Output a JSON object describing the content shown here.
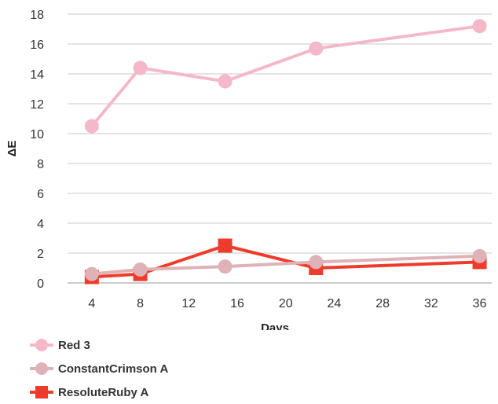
{
  "chart_data": {
    "type": "line",
    "title": "",
    "xlabel": "Days",
    "ylabel": "ΔE",
    "xlim": [
      2,
      37
    ],
    "ylim": [
      0,
      18
    ],
    "xticks": [
      4,
      8,
      12,
      16,
      20,
      24,
      28,
      32,
      36
    ],
    "yticks": [
      0,
      2,
      4,
      6,
      8,
      10,
      12,
      14,
      16,
      18
    ],
    "grid": "horizontal",
    "legend_position": "bottom-left",
    "series": [
      {
        "name": "Red 3",
        "color": "#f4b8c8",
        "marker": "circle",
        "x": [
          4,
          8,
          15,
          22.5,
          36
        ],
        "y": [
          10.5,
          14.4,
          13.5,
          15.7,
          17.2
        ]
      },
      {
        "name": "ConstantCrimson A",
        "color": "#deb2b6",
        "marker": "circle",
        "x": [
          4,
          8,
          15,
          22.5,
          36
        ],
        "y": [
          0.6,
          0.9,
          1.1,
          1.4,
          1.8
        ]
      },
      {
        "name": "ResoluteRuby A",
        "color": "#ef3b2c",
        "marker": "square",
        "x": [
          4,
          8,
          15,
          22.5,
          36
        ],
        "y": [
          0.4,
          0.6,
          2.5,
          1.0,
          1.4
        ]
      }
    ]
  }
}
